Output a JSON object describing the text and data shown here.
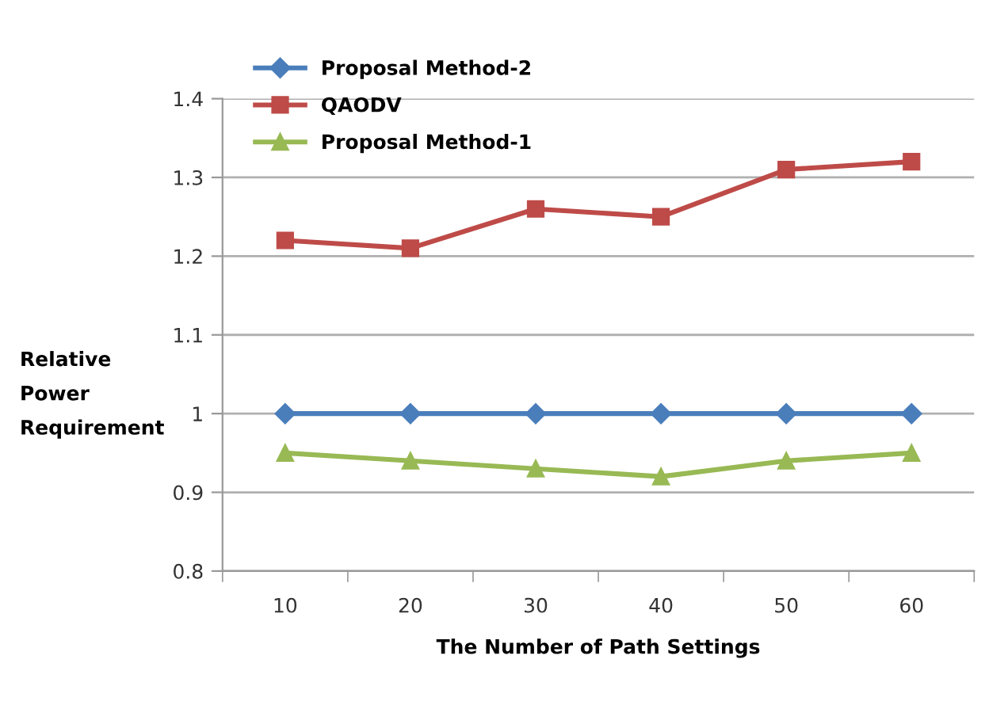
{
  "chart_data": {
    "type": "line",
    "xlabel": "The Number of Path Settings",
    "ylabel": "Relative Power Requirement",
    "categories": [
      "10",
      "20",
      "30",
      "40",
      "50",
      "60"
    ],
    "series": [
      {
        "name": "Proposal Method-2",
        "color": "#4a7ebb",
        "marker": "diamond",
        "values": [
          1.0,
          1.0,
          1.0,
          1.0,
          1.0,
          1.0
        ]
      },
      {
        "name": "QAODV",
        "color": "#be4b48",
        "marker": "square",
        "values": [
          1.22,
          1.21,
          1.26,
          1.25,
          1.31,
          1.32
        ]
      },
      {
        "name": "Proposal Method-1",
        "color": "#98b954",
        "marker": "triangle",
        "values": [
          0.95,
          0.94,
          0.93,
          0.92,
          0.94,
          0.95
        ]
      }
    ],
    "ylim": [
      0.8,
      1.4
    ],
    "yticks": [
      0.8,
      0.9,
      {
        "value": 1.0,
        "label": "1"
      },
      1.1,
      1.2,
      1.3,
      1.4
    ],
    "grid": "y",
    "legend": "top left",
    "line_style": "solid"
  }
}
